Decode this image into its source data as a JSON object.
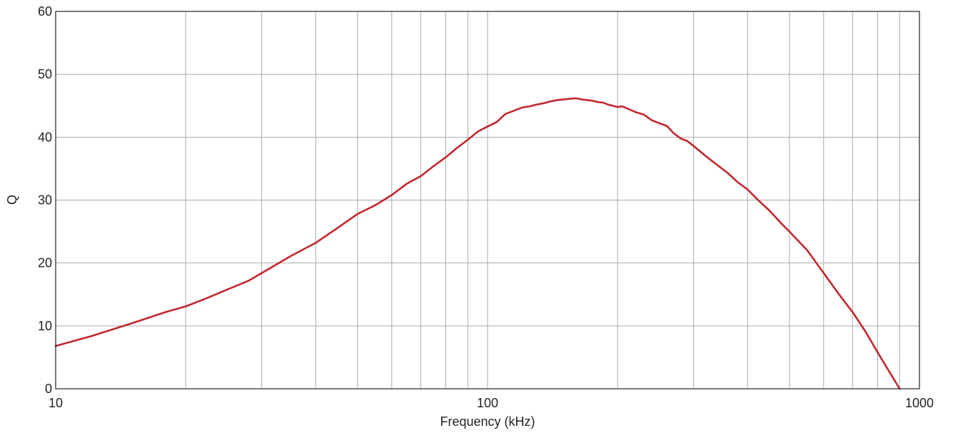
{
  "chart_data": {
    "type": "line",
    "xlabel": "Frequency (kHz)",
    "ylabel": "Q",
    "xscale": "log",
    "xlim": [
      10,
      1000
    ],
    "ylim": [
      0,
      60
    ],
    "xticks": [
      10,
      100,
      1000
    ],
    "xtick_labels": [
      "10",
      "100",
      "1000"
    ],
    "yticks": [
      0,
      10,
      20,
      30,
      40,
      50,
      60
    ],
    "ytick_labels": [
      "0",
      "10",
      "20",
      "30",
      "40",
      "50",
      "60"
    ],
    "grid": true,
    "line_color": "#c1272d",
    "series": [
      {
        "x": [
          10,
          12,
          15,
          18,
          20,
          22,
          25,
          28,
          30,
          35,
          40,
          45,
          50,
          55,
          60,
          65,
          70,
          75,
          80,
          85,
          90,
          95,
          100,
          105,
          110,
          115,
          120,
          125,
          130,
          135,
          140,
          145,
          150,
          155,
          160,
          165,
          170,
          175,
          180,
          185,
          190,
          195,
          200,
          205,
          210,
          220,
          230,
          240,
          250,
          260,
          270,
          280,
          290,
          300,
          320,
          340,
          360,
          380,
          400,
          420,
          450,
          480,
          500,
          550,
          600,
          650,
          700,
          750,
          800,
          850,
          900
        ],
        "y": [
          6.8,
          8.3,
          10.4,
          12.2,
          13.1,
          14.2,
          15.8,
          17.2,
          18.4,
          21.1,
          23.2,
          25.6,
          27.8,
          29.2,
          30.8,
          32.6,
          33.8,
          35.4,
          36.8,
          38.3,
          39.6,
          40.9,
          41.7,
          42.4,
          43.7,
          44.2,
          44.7,
          44.9,
          45.2,
          45.4,
          45.7,
          45.9,
          46.0,
          46.1,
          46.2,
          46.0,
          45.9,
          45.8,
          45.6,
          45.5,
          45.2,
          45.0,
          44.8,
          44.9,
          44.6,
          44.0,
          43.6,
          42.7,
          42.2,
          41.8,
          40.6,
          39.8,
          39.4,
          38.6,
          37.0,
          35.6,
          34.3,
          32.8,
          31.7,
          30.2,
          28.3,
          26.2,
          25.0,
          22.0,
          18.4,
          15.1,
          12.2,
          9.1,
          5.8,
          2.8,
          0.0
        ]
      }
    ]
  }
}
